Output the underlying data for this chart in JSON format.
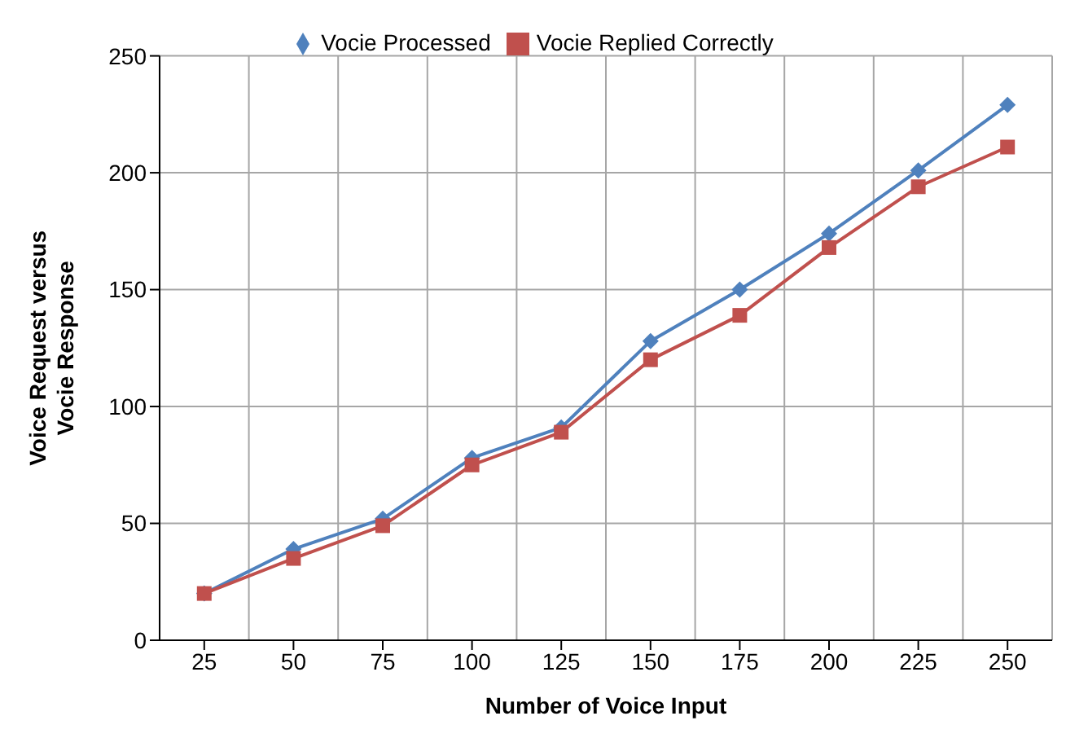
{
  "chart_data": {
    "type": "line",
    "xlabel": "Number of Voice Input",
    "ylabel": "Voice Request versus  Vocie Response",
    "categories": [
      "25",
      "50",
      "75",
      "100",
      "125",
      "150",
      "175",
      "200",
      "225",
      "250"
    ],
    "series": [
      {
        "name": "Vocie Processed",
        "color": "#4f81bd",
        "marker": "diamond",
        "values": [
          20,
          39,
          52,
          78,
          91,
          128,
          150,
          174,
          201,
          229
        ]
      },
      {
        "name": "Vocie Replied  Correctly",
        "color": "#c0504d",
        "marker": "square",
        "values": [
          20,
          35,
          49,
          75,
          89,
          120,
          139,
          168,
          194,
          211
        ]
      }
    ],
    "ylim": [
      0,
      250
    ],
    "yticks": [
      0,
      50,
      100,
      150,
      200,
      250
    ],
    "grid": true,
    "legend": "top"
  }
}
